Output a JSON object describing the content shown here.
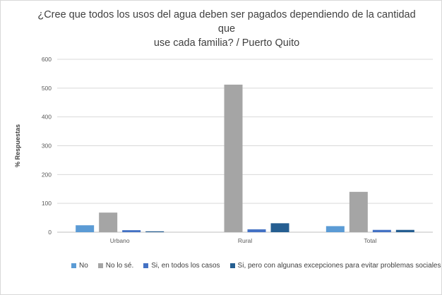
{
  "chart_data": {
    "type": "bar",
    "title_line1": "¿Cree que todos los usos del agua deben ser pagados dependiendo de la cantidad que",
    "title_line2": "use cada familia? / Puerto Quito",
    "ylabel": "% Respuestas",
    "xlabel": "",
    "ylim": [
      0,
      600
    ],
    "yticks": [
      0,
      100,
      200,
      300,
      400,
      500,
      600
    ],
    "grid": true,
    "legend_position": "bottom",
    "categories": [
      "Urbano",
      "Rural",
      "Total"
    ],
    "series": [
      {
        "name": "No",
        "color": "#5b9bd5",
        "values": [
          24,
          0,
          21
        ]
      },
      {
        "name": "No lo sé.",
        "color": "#a5a5a5",
        "values": [
          68,
          512,
          140
        ]
      },
      {
        "name": "Si, en todos los casos",
        "color": "#4472c4",
        "values": [
          7,
          10,
          8
        ]
      },
      {
        "name": "Si, pero con algunas excepciones para evitar problemas sociales",
        "color": "#255e91",
        "values": [
          3,
          31,
          8
        ]
      }
    ]
  }
}
